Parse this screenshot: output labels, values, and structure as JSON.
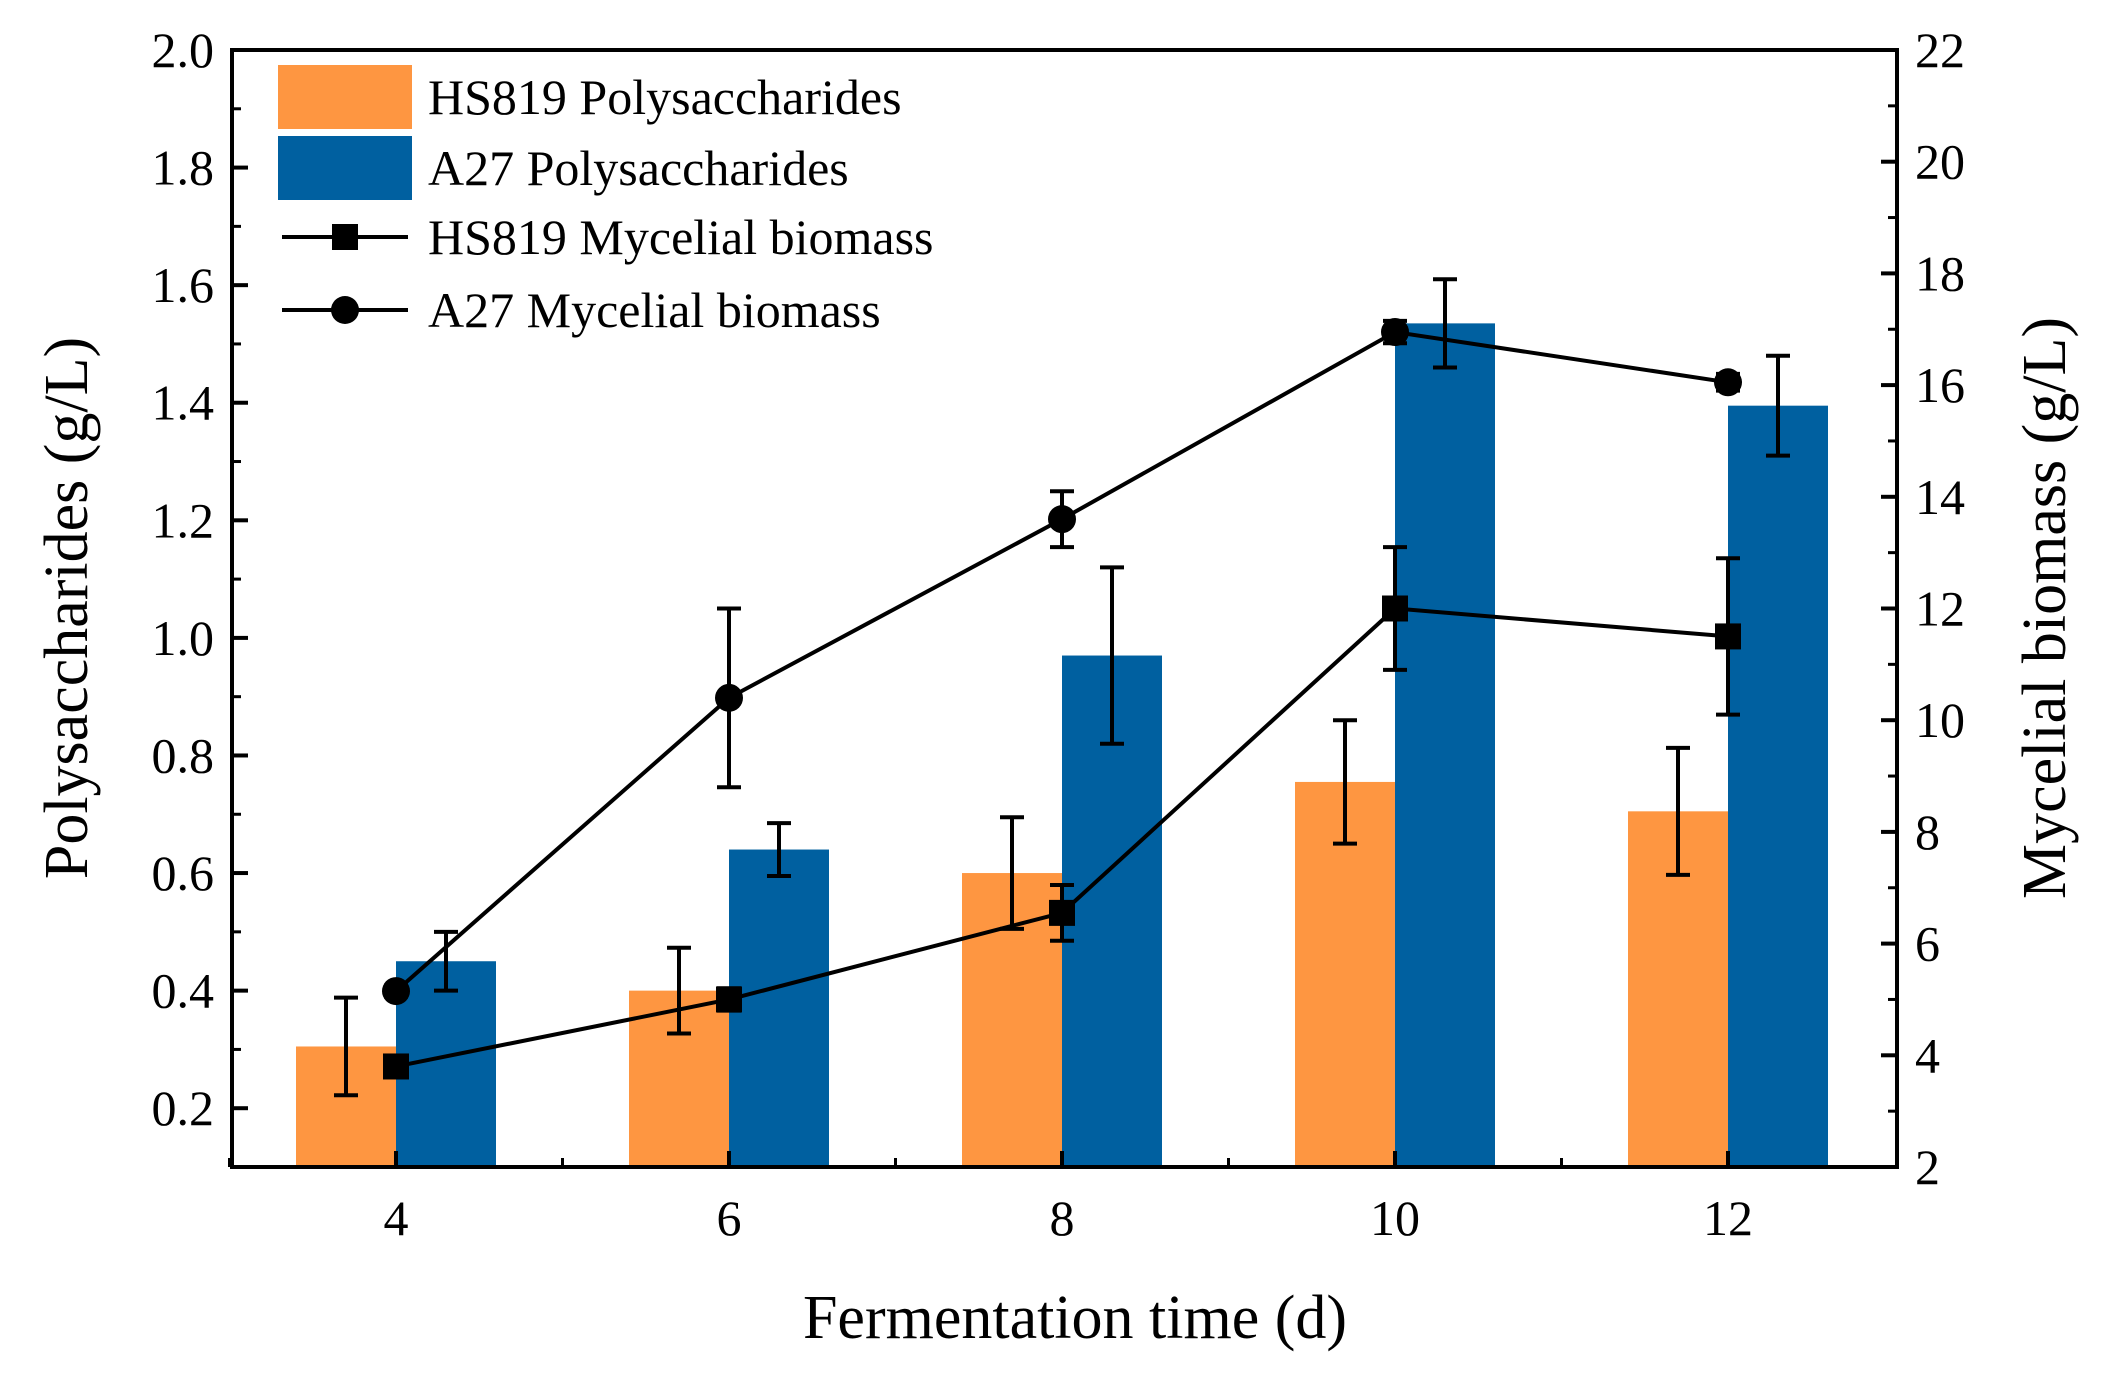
{
  "chart_data": {
    "type": "bar",
    "title": "",
    "xlabel": "Fermentation time (d)",
    "ylabel": "Polysaccharides (g/L)",
    "y2label": "Mycelial biomass (g/L)",
    "categories": [
      "4",
      "6",
      "8",
      "10",
      "12"
    ],
    "ylim": [
      0.1,
      2.0
    ],
    "y2lim": [
      2,
      22
    ],
    "yticks": [
      "0.2",
      "0.4",
      "0.6",
      "0.8",
      "1.0",
      "1.2",
      "1.4",
      "1.6",
      "1.8",
      "2.0"
    ],
    "y2ticks": [
      "2",
      "4",
      "6",
      "8",
      "10",
      "12",
      "14",
      "16",
      "18",
      "20",
      "22"
    ],
    "legend_position": "top-left",
    "series": [
      {
        "name": "HS819 Polysaccharides",
        "kind": "bar",
        "axis": "left",
        "color": "#FE9641",
        "values": [
          0.305,
          0.4,
          0.6,
          0.755,
          0.705
        ],
        "errors": [
          0.083,
          0.073,
          0.095,
          0.105,
          0.108
        ]
      },
      {
        "name": "A27 Polysaccharides",
        "kind": "bar",
        "axis": "left",
        "color": "#0060A0",
        "values": [
          0.45,
          0.64,
          0.97,
          1.535,
          1.395
        ],
        "errors": [
          0.05,
          0.045,
          0.15,
          0.075,
          0.085
        ]
      },
      {
        "name": "HS819 Mycelial biomass",
        "kind": "line",
        "marker": "square",
        "axis": "right",
        "color": "#000000",
        "values": [
          3.8,
          5.0,
          6.55,
          12.0,
          11.5
        ],
        "errors": [
          0.1,
          0.2,
          0.5,
          1.1,
          1.4
        ]
      },
      {
        "name": "A27 Mycelial biomass",
        "kind": "line",
        "marker": "circle",
        "axis": "right",
        "color": "#000000",
        "values": [
          5.15,
          10.4,
          13.6,
          16.95,
          16.05
        ],
        "errors": [
          0.1,
          1.6,
          0.5,
          0.2,
          0.15
        ]
      }
    ]
  }
}
